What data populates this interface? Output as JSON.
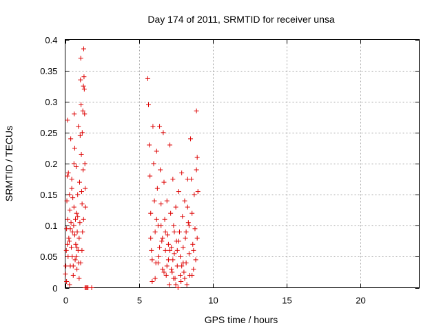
{
  "chart_data": {
    "type": "scatter",
    "title": "Day 174 of 2011, SRMTID for receiver unsa",
    "xlabel": "GPS time / hours",
    "ylabel": "SRMTID / TECUs",
    "xlim": [
      0,
      24
    ],
    "ylim": [
      0,
      0.4
    ],
    "xticks": [
      0,
      5,
      10,
      15,
      20
    ],
    "xtick_labels": [
      "0",
      "5",
      "10",
      "15",
      "20"
    ],
    "yticks": [
      0,
      0.05,
      0.1,
      0.15,
      0.2,
      0.25,
      0.3,
      0.35,
      0.4
    ],
    "ytick_labels": [
      "0",
      "0.05",
      "0.1",
      "0.15",
      "0.2",
      "0.25",
      "0.3",
      "0.35",
      "0.4"
    ],
    "grid": true,
    "marker": "plus",
    "color": "#dd0000",
    "series": [
      {
        "points": [
          [
            0.02,
            0.022
          ],
          [
            0.05,
            0.035
          ],
          [
            0.08,
            0.06
          ],
          [
            0.1,
            0.095
          ],
          [
            0.12,
            0.14
          ],
          [
            0.14,
            0.18
          ],
          [
            0.16,
            0.27
          ],
          [
            0.18,
            0.11
          ],
          [
            0.2,
            0.05
          ],
          [
            0.22,
            0.185
          ],
          [
            0.25,
            0.08
          ],
          [
            0.28,
            0.075
          ],
          [
            0.3,
            0.15
          ],
          [
            0.32,
            0.125
          ],
          [
            0.35,
            0.035
          ],
          [
            0.38,
            0.24
          ],
          [
            0.4,
            0.105
          ],
          [
            0.42,
            0.065
          ],
          [
            0.45,
            0.16
          ],
          [
            0.48,
            0.05
          ],
          [
            0.5,
            0.09
          ],
          [
            0.52,
            0.145
          ],
          [
            0.55,
            0.035
          ],
          [
            0.58,
            0.1
          ],
          [
            0.6,
            0.2
          ],
          [
            0.62,
            0.28
          ],
          [
            0.65,
            0.225
          ],
          [
            0.68,
            0.045
          ],
          [
            0.7,
            0.11
          ],
          [
            0.72,
            0.07
          ],
          [
            0.75,
            0.195
          ],
          [
            0.78,
            0.12
          ],
          [
            0.8,
            0.03
          ],
          [
            0.82,
            0.09
          ],
          [
            0.85,
            0.15
          ],
          [
            0.88,
            0.06
          ],
          [
            0.9,
            0.26
          ],
          [
            0.92,
            0.04
          ],
          [
            0.95,
            0.08
          ],
          [
            0.98,
            0.17
          ],
          [
            1.0,
            0.105
          ],
          [
            1.02,
            0.245
          ],
          [
            1.04,
            0.335
          ],
          [
            1.06,
            0.37
          ],
          [
            1.08,
            0.295
          ],
          [
            1.1,
            0.215
          ],
          [
            1.12,
            0.155
          ],
          [
            1.14,
            0.06
          ],
          [
            1.16,
            0.25
          ],
          [
            1.18,
            0.09
          ],
          [
            1.2,
            0.285
          ],
          [
            1.22,
            0.19
          ],
          [
            1.24,
            0.325
          ],
          [
            1.26,
            0.385
          ],
          [
            1.28,
            0.34
          ],
          [
            1.3,
            0.32
          ],
          [
            1.32,
            0.28
          ],
          [
            1.34,
            0.2
          ],
          [
            1.36,
            0.16
          ],
          [
            1.38,
            0.13
          ],
          [
            0.1,
            0.01
          ],
          [
            0.3,
            0.005
          ],
          [
            0.55,
            0.02
          ],
          [
            0.75,
            0.05
          ],
          [
            0.95,
            0.015
          ],
          [
            1.15,
            0.135
          ],
          [
            1.25,
            0.11
          ],
          [
            0.45,
            0.175
          ],
          [
            0.65,
            0.085
          ],
          [
            0.85,
            0.115
          ],
          [
            0.15,
            0.07
          ],
          [
            0.35,
            0.095
          ],
          [
            0.6,
            0.13
          ],
          [
            0.8,
            0.065
          ],
          [
            1.05,
            0.04
          ],
          [
            1.35,
            0.0
          ],
          [
            1.42,
            0.0
          ],
          [
            1.48,
            0.0
          ],
          [
            1.55,
            0.0
          ],
          [
            1.8,
            0.0
          ],
          [
            5.6,
            0.337
          ],
          [
            5.65,
            0.295
          ],
          [
            5.7,
            0.23
          ],
          [
            5.75,
            0.18
          ],
          [
            5.8,
            0.12
          ],
          [
            5.85,
            0.06
          ],
          [
            5.9,
            0.01
          ],
          [
            5.95,
            0.26
          ],
          [
            6.0,
            0.2
          ],
          [
            6.05,
            0.14
          ],
          [
            6.1,
            0.09
          ],
          [
            6.15,
            0.04
          ],
          [
            6.2,
            0.22
          ],
          [
            6.25,
            0.16
          ],
          [
            6.3,
            0.1
          ],
          [
            6.35,
            0.05
          ],
          [
            6.4,
            0.26
          ],
          [
            6.45,
            0.19
          ],
          [
            6.5,
            0.135
          ],
          [
            6.55,
            0.075
          ],
          [
            6.6,
            0.03
          ],
          [
            6.65,
            0.25
          ],
          [
            6.7,
            0.17
          ],
          [
            6.75,
            0.11
          ],
          [
            6.8,
            0.06
          ],
          [
            6.85,
            0.02
          ],
          [
            6.9,
            0.14
          ],
          [
            6.95,
            0.085
          ],
          [
            7.0,
            0.045
          ],
          [
            7.05,
            0.005
          ],
          [
            7.1,
            0.23
          ],
          [
            7.15,
            0.12
          ],
          [
            7.2,
            0.065
          ],
          [
            7.25,
            0.025
          ],
          [
            7.3,
            0.175
          ],
          [
            7.35,
            0.1
          ],
          [
            7.4,
            0.055
          ],
          [
            7.45,
            0.015
          ],
          [
            7.5,
            0.13
          ],
          [
            7.55,
            0.075
          ],
          [
            7.6,
            0.035
          ],
          [
            7.65,
            0.0
          ],
          [
            7.7,
            0.155
          ],
          [
            7.75,
            0.09
          ],
          [
            7.8,
            0.05
          ],
          [
            7.85,
            0.01
          ],
          [
            7.9,
            0.185
          ],
          [
            7.95,
            0.115
          ],
          [
            8.0,
            0.065
          ],
          [
            8.05,
            0.025
          ],
          [
            8.1,
            0.14
          ],
          [
            8.15,
            0.08
          ],
          [
            8.2,
            0.04
          ],
          [
            8.25,
            0.005
          ],
          [
            8.3,
            0.175
          ],
          [
            8.35,
            0.105
          ],
          [
            8.4,
            0.055
          ],
          [
            8.45,
            0.02
          ],
          [
            8.5,
            0.24
          ],
          [
            8.55,
            0.175
          ],
          [
            8.6,
            0.12
          ],
          [
            8.65,
            0.07
          ],
          [
            8.7,
            0.03
          ],
          [
            8.75,
            0.15
          ],
          [
            8.8,
            0.095
          ],
          [
            8.85,
            0.045
          ],
          [
            8.9,
            0.285
          ],
          [
            8.95,
            0.21
          ],
          [
            9.0,
            0.155
          ],
          [
            6.3,
            0.04
          ],
          [
            6.7,
            0.025
          ],
          [
            7.0,
            0.07
          ],
          [
            7.2,
            0.03
          ],
          [
            7.4,
            0.09
          ],
          [
            7.6,
            0.06
          ],
          [
            7.8,
            0.02
          ],
          [
            8.0,
            0.04
          ],
          [
            8.2,
            0.09
          ],
          [
            6.6,
            0.08
          ],
          [
            7.3,
            0.045
          ],
          [
            5.8,
            0.08
          ],
          [
            6.1,
            0.015
          ],
          [
            6.5,
            0.1
          ],
          [
            6.9,
            0.035
          ],
          [
            7.1,
            0.06
          ],
          [
            7.5,
            0.005
          ],
          [
            7.7,
            0.075
          ],
          [
            8.1,
            0.015
          ],
          [
            8.4,
            0.1
          ],
          [
            8.7,
            0.06
          ],
          [
            6.2,
            0.11
          ],
          [
            6.8,
            0.09
          ],
          [
            7.9,
            0.035
          ],
          [
            8.3,
            0.13
          ],
          [
            8.6,
            0.02
          ],
          [
            8.9,
            0.19
          ],
          [
            8.95,
            0.08
          ],
          [
            5.9,
            0.045
          ],
          [
            6.4,
            0.065
          ],
          [
            7.35,
            0.015
          ]
        ]
      }
    ]
  }
}
